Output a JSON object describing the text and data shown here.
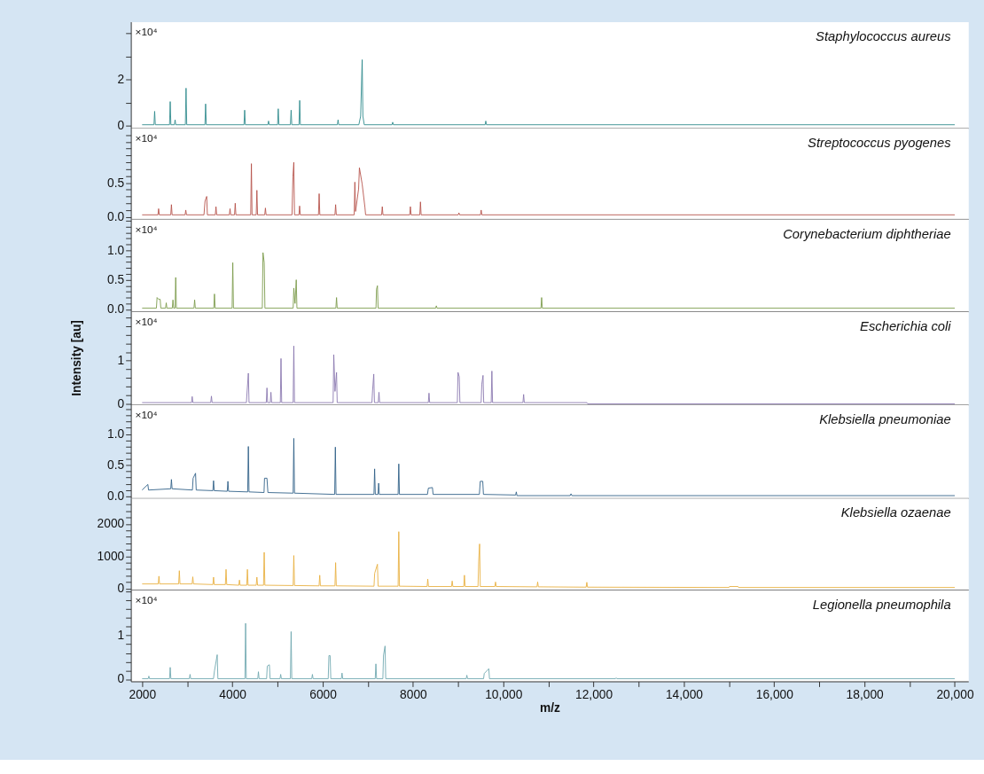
{
  "chart_data": [
    {
      "type": "line",
      "xlim": [
        1750,
        20300
      ],
      "ylim": [
        -0.1,
        4.5
      ],
      "yticks": [
        0,
        {
          "value": 1,
          "label": null
        },
        2,
        {
          "value": 3,
          "label": null
        },
        {
          "value": 4,
          "label": null
        }
      ],
      "tick_labels": "y",
      "annotations": [
        "×10⁴"
      ],
      "series": [
        {
          "name": "Staphylococcus aureus",
          "color": "#2f8a8c",
          "x": [
            2000,
            2262,
            2277,
            2292,
            2607,
            2622,
            2637,
            2715,
            2730,
            2745,
            2958,
            2973,
            2988,
            3391,
            3406,
            3421,
            4256,
            4271,
            4286,
            4785,
            4800,
            4815,
            5000,
            5015,
            5030,
            5285,
            5300,
            5315,
            5475,
            5490,
            5505,
            6325,
            6340,
            6355,
            6800,
            6840,
            6874,
            6890,
            6920,
            7535,
            7550,
            7565,
            9597,
            9612,
            9627,
            20000
          ],
          "values": [
            0.05,
            0.05,
            0.63,
            0.05,
            0.05,
            1.05,
            0.05,
            0.05,
            0.26,
            0.05,
            0.05,
            1.63,
            0.05,
            0.05,
            0.95,
            0.05,
            0.05,
            0.68,
            0.05,
            0.05,
            0.21,
            0.05,
            0.05,
            0.74,
            0.05,
            0.05,
            0.68,
            0.05,
            0.05,
            1.1,
            0.05,
            0.05,
            0.26,
            0.05,
            0.05,
            0.42,
            2.86,
            0.42,
            0.05,
            0.05,
            0.16,
            0.05,
            0.05,
            0.21,
            0.05,
            0.05
          ]
        }
      ]
    },
    {
      "type": "line",
      "xlim": [
        1750,
        20300
      ],
      "ylim": [
        -0.03,
        1.3
      ],
      "yticks": [
        {
          "value": 0,
          "label": "0.0"
        },
        {
          "value": 0.1,
          "label": null
        },
        {
          "value": 0.2,
          "label": null
        },
        {
          "value": 0.3,
          "label": null
        },
        {
          "value": 0.4,
          "label": null
        },
        0.5,
        {
          "value": 0.6,
          "label": null
        },
        {
          "value": 0.7,
          "label": null
        },
        {
          "value": 0.8,
          "label": null
        },
        {
          "value": 0.9,
          "label": null
        },
        {
          "value": 1.0,
          "label": null
        },
        {
          "value": 1.1,
          "label": null
        },
        {
          "value": 1.2,
          "label": null
        }
      ],
      "tick_labels": "y",
      "annotations": [
        "×10⁴"
      ],
      "series": [
        {
          "name": "Streptococcus pyogenes",
          "color": "#b5524a",
          "x": [
            2000,
            2350,
            2365,
            2380,
            2634,
            2649,
            2664,
            2952,
            2967,
            2982,
            3370,
            3393,
            3430,
            3445,
            3621,
            3636,
            3651,
            3932,
            3947,
            3962,
            4047,
            4062,
            4077,
            4405,
            4420,
            4435,
            4527,
            4542,
            4557,
            4716,
            4731,
            4746,
            5320,
            5340,
            5360,
            5375,
            5473,
            5488,
            5503,
            5906,
            5921,
            5936,
            6271,
            6286,
            6301,
            6697,
            6712,
            6727,
            6795,
            6813,
            6874,
            6935,
            6950,
            7305,
            7320,
            7335,
            7927,
            7942,
            7957,
            8150,
            8165,
            8180,
            9002,
            9017,
            9032,
            9495,
            9510,
            9525,
            20000
          ],
          "values": [
            0.03,
            0.03,
            0.12,
            0.03,
            0.03,
            0.18,
            0.03,
            0.03,
            0.1,
            0.03,
            0.03,
            0.23,
            0.3,
            0.03,
            0.03,
            0.15,
            0.03,
            0.03,
            0.12,
            0.03,
            0.03,
            0.2,
            0.03,
            0.03,
            0.78,
            0.03,
            0.03,
            0.39,
            0.03,
            0.03,
            0.13,
            0.03,
            0.03,
            0.59,
            0.8,
            0.03,
            0.03,
            0.16,
            0.03,
            0.03,
            0.34,
            0.03,
            0.03,
            0.18,
            0.03,
            0.03,
            0.51,
            0.08,
            0.41,
            0.72,
            0.48,
            0.14,
            0.03,
            0.03,
            0.15,
            0.03,
            0.03,
            0.15,
            0.03,
            0.03,
            0.22,
            0.03,
            0.03,
            0.06,
            0.03,
            0.03,
            0.1,
            0.03,
            0.03
          ]
        }
      ]
    },
    {
      "type": "line",
      "xlim": [
        1750,
        20300
      ],
      "ylim": [
        -0.035,
        1.53
      ],
      "yticks": [
        {
          "value": 0,
          "label": "0.0"
        },
        {
          "value": 0.1,
          "label": null
        },
        {
          "value": 0.2,
          "label": null
        },
        {
          "value": 0.3,
          "label": null
        },
        {
          "value": 0.4,
          "label": null
        },
        0.5,
        {
          "value": 0.6,
          "label": null
        },
        {
          "value": 0.7,
          "label": null
        },
        {
          "value": 0.8,
          "label": null
        },
        {
          "value": 0.9,
          "label": null
        },
        {
          "value": 1.0,
          "label": "1.0"
        },
        {
          "value": 1.1,
          "label": null
        },
        {
          "value": 1.2,
          "label": null
        },
        {
          "value": 1.3,
          "label": null
        },
        {
          "value": 1.4,
          "label": null
        },
        {
          "value": 1.5,
          "label": null
        }
      ],
      "tick_labels": "y",
      "annotations": [
        "×10⁴"
      ],
      "series": [
        {
          "name": "Corynebacterium diphtheriae",
          "color": "#7a9a4a",
          "x": [
            2000,
            2316,
            2331,
            2365,
            2399,
            2414,
            2519,
            2534,
            2549,
            2668,
            2683,
            2698,
            2729,
            2744,
            2759,
            3148,
            3163,
            3178,
            3587,
            3602,
            3617,
            3993,
            4008,
            4023,
            4662,
            4677,
            4705,
            4720,
            5345,
            5360,
            5387,
            5414,
            5429,
            6291,
            6306,
            6321,
            7180,
            7192,
            7212,
            7227,
            8502,
            8517,
            8532,
            10834,
            10849,
            10864,
            20000
          ],
          "values": [
            0.02,
            0.02,
            0.2,
            0.17,
            0.17,
            0.02,
            0.02,
            0.11,
            0.02,
            0.02,
            0.16,
            0.02,
            0.02,
            0.54,
            0.02,
            0.02,
            0.16,
            0.02,
            0.02,
            0.26,
            0.02,
            0.02,
            0.79,
            0.02,
            0.02,
            0.96,
            0.79,
            0.02,
            0.02,
            0.36,
            0.1,
            0.5,
            0.02,
            0.02,
            0.2,
            0.02,
            0.02,
            0.34,
            0.4,
            0.02,
            0.02,
            0.06,
            0.02,
            0.02,
            0.2,
            0.02,
            0.02
          ]
        }
      ]
    },
    {
      "type": "line",
      "xlim": [
        1750,
        20300
      ],
      "ylim": [
        -0.02,
        2.14
      ],
      "yticks": [
        0,
        {
          "value": 0.2,
          "label": null
        },
        {
          "value": 0.4,
          "label": null
        },
        {
          "value": 0.6,
          "label": null
        },
        {
          "value": 0.8,
          "label": null
        },
        1,
        {
          "value": 1.2,
          "label": null
        },
        {
          "value": 1.4,
          "label": null
        },
        {
          "value": 1.6,
          "label": null
        },
        {
          "value": 1.8,
          "label": null
        },
        {
          "value": 2.0,
          "label": null
        }
      ],
      "tick_labels": "y",
      "annotations": [
        "×10⁴"
      ],
      "ylabel": "Intensity [au]",
      "series": [
        {
          "name": "Escherichia coli",
          "color": "#8a78b0",
          "x": [
            2000,
            3094,
            3109,
            3124,
            3520,
            3535,
            3550,
            4310,
            4326,
            4353,
            4368,
            4750,
            4765,
            4780,
            4838,
            4853,
            4868,
            5061,
            5076,
            5091,
            5345,
            5360,
            5375,
            6230,
            6245,
            6272,
            6306,
            6321,
            7090,
            7104,
            7131,
            7146,
            7231,
            7246,
            7261,
            8339,
            8354,
            8369,
            8982,
            8997,
            9024,
            9039,
            9509,
            9524,
            9551,
            9566,
            9732,
            9747,
            9762,
            10435,
            10450,
            10465,
            11850,
            11870,
            20000
          ],
          "values": [
            0.03,
            0.03,
            0.17,
            0.03,
            0.03,
            0.18,
            0.03,
            0.03,
            0.3,
            0.71,
            0.03,
            0.03,
            0.37,
            0.03,
            0.03,
            0.27,
            0.03,
            0.03,
            1.05,
            0.03,
            0.03,
            1.34,
            0.03,
            0.03,
            1.14,
            0.29,
            0.73,
            0.03,
            0.03,
            0.3,
            0.69,
            0.03,
            0.03,
            0.27,
            0.03,
            0.03,
            0.25,
            0.03,
            0.03,
            0.73,
            0.63,
            0.03,
            0.03,
            0.46,
            0.66,
            0.03,
            0.03,
            0.76,
            0.03,
            0.03,
            0.22,
            0.03,
            0.03,
            0,
            0
          ]
        }
      ]
    },
    {
      "type": "line",
      "xlim": [
        1750,
        20300
      ],
      "ylim": [
        -0.03,
        1.47
      ],
      "yticks": [
        {
          "value": 0,
          "label": "0.0"
        },
        {
          "value": 0.1,
          "label": null
        },
        {
          "value": 0.2,
          "label": null
        },
        {
          "value": 0.3,
          "label": null
        },
        {
          "value": 0.4,
          "label": null
        },
        0.5,
        {
          "value": 0.6,
          "label": null
        },
        {
          "value": 0.7,
          "label": null
        },
        {
          "value": 0.8,
          "label": null
        },
        {
          "value": 0.9,
          "label": null
        },
        {
          "value": 1.0,
          "label": "1.0"
        },
        {
          "value": 1.1,
          "label": null
        },
        {
          "value": 1.2,
          "label": null
        },
        {
          "value": 1.3,
          "label": null
        },
        {
          "value": 1.4,
          "label": null
        }
      ],
      "tick_labels": "y",
      "annotations": [
        "×10⁴"
      ],
      "series": [
        {
          "name": "Klebsiella pneumoniae",
          "color": "#2e5f87",
          "x": [
            2000,
            2127,
            2142,
            2634,
            2649,
            2664,
            3114,
            3129,
            3183,
            3198,
            3567,
            3582,
            3597,
            3885,
            3900,
            3915,
            4338,
            4353,
            4368,
            4700,
            4711,
            4765,
            4786,
            5345,
            5360,
            5375,
            6265,
            6280,
            6295,
            7135,
            7150,
            7165,
            7224,
            7239,
            7254,
            7670,
            7685,
            7700,
            8320,
            8340,
            8430,
            8445,
            9470,
            9490,
            9545,
            9560,
            10273,
            10288,
            10303,
            11480,
            11500,
            11520,
            20000
          ],
          "values": [
            0.1,
            0.19,
            0.1,
            0.12,
            0.27,
            0.12,
            0.1,
            0.29,
            0.37,
            0.1,
            0.09,
            0.25,
            0.09,
            0.08,
            0.24,
            0.08,
            0.07,
            0.8,
            0.07,
            0.06,
            0.29,
            0.29,
            0.06,
            0.05,
            0.93,
            0.05,
            0.03,
            0.79,
            0.03,
            0.03,
            0.44,
            0.03,
            0.03,
            0.21,
            0.03,
            0.03,
            0.52,
            0.03,
            0.03,
            0.13,
            0.14,
            0.03,
            0.03,
            0.24,
            0.24,
            0.03,
            0.02,
            0.07,
            0.01,
            0.01,
            0.04,
            0.01,
            0.01
          ]
        }
      ]
    },
    {
      "type": "line",
      "xlim": [
        1750,
        20300
      ],
      "ylim": [
        -40,
        2800
      ],
      "yticks": [
        0,
        {
          "value": 200,
          "label": null
        },
        {
          "value": 400,
          "label": null
        },
        {
          "value": 600,
          "label": null
        },
        {
          "value": 800,
          "label": null
        },
        1000,
        {
          "value": 1200,
          "label": null
        },
        {
          "value": 1400,
          "label": null
        },
        {
          "value": 1600,
          "label": null
        },
        {
          "value": 1800,
          "label": null
        },
        2000,
        {
          "value": 2200,
          "label": null
        },
        {
          "value": 2400,
          "label": null
        },
        {
          "value": 2600,
          "label": null
        }
      ],
      "tick_labels": "y",
      "series": [
        {
          "name": "Klebsiella ozaenae",
          "color": "#e8b040",
          "x": [
            2000,
            2357,
            2372,
            2387,
            2809,
            2824,
            2839,
            3107,
            3122,
            3137,
            3567,
            3582,
            3597,
            3844,
            3859,
            3874,
            4141,
            4156,
            4171,
            4317,
            4332,
            4347,
            4527,
            4542,
            4557,
            4689,
            4704,
            4719,
            5345,
            5360,
            5375,
            5919,
            5934,
            5949,
            6271,
            6286,
            6301,
            7136,
            7151,
            7212,
            7227,
            7670,
            7685,
            7700,
            8312,
            8327,
            8342,
            8853,
            8868,
            8883,
            9124,
            9139,
            9154,
            9440,
            9455,
            9475,
            9490,
            9813,
            9828,
            9843,
            10746,
            10761,
            10776,
            11835,
            11850,
            11865,
            15000,
            15010,
            15200,
            15210,
            20000
          ],
          "values": [
            140,
            140,
            380,
            140,
            140,
            550,
            140,
            140,
            360,
            140,
            120,
            350,
            120,
            120,
            590,
            120,
            100,
            260,
            100,
            100,
            590,
            100,
            100,
            350,
            100,
            100,
            1120,
            100,
            90,
            1020,
            90,
            80,
            410,
            80,
            80,
            800,
            80,
            70,
            470,
            750,
            70,
            70,
            1760,
            70,
            60,
            290,
            60,
            60,
            230,
            60,
            60,
            410,
            60,
            60,
            840,
            1380,
            60,
            60,
            200,
            60,
            50,
            200,
            50,
            40,
            190,
            40,
            30,
            60,
            60,
            30,
            30
          ]
        }
      ]
    },
    {
      "type": "line",
      "xlim": [
        1750,
        20300
      ],
      "ylim": [
        -0.05,
        2.05
      ],
      "yticks": [
        0,
        {
          "value": 0.2,
          "label": null
        },
        {
          "value": 0.4,
          "label": null
        },
        {
          "value": 0.6,
          "label": null
        },
        {
          "value": 0.8,
          "label": null
        },
        1,
        {
          "value": 1.2,
          "label": null
        },
        {
          "value": 1.4,
          "label": null
        },
        {
          "value": 1.6,
          "label": null
        },
        {
          "value": 1.8,
          "label": null
        },
        {
          "value": 2.0,
          "label": null
        }
      ],
      "annotations": [
        "×10⁴"
      ],
      "xlabel": "m/z",
      "xticks": [
        2000,
        {
          "value": 3000,
          "label": null
        },
        4000,
        {
          "value": 5000,
          "label": null
        },
        6000,
        {
          "value": 7000,
          "label": null
        },
        8000,
        {
          "value": 9000,
          "label": null
        },
        {
          "value": 10000,
          "label": "10,000"
        },
        {
          "value": 11000,
          "label": null
        },
        {
          "value": 12000,
          "label": "12,000"
        },
        {
          "value": 13000,
          "label": null
        },
        {
          "value": 14000,
          "label": "14,000"
        },
        {
          "value": 15000,
          "label": null
        },
        {
          "value": 16000,
          "label": "16,000"
        },
        {
          "value": 17000,
          "label": null
        },
        {
          "value": 18000,
          "label": "18,000"
        },
        {
          "value": 19000,
          "label": null
        },
        {
          "value": 20000,
          "label": "20,000"
        }
      ],
      "series": [
        {
          "name": "Legionella pneumophila",
          "color": "#6fa8b0",
          "x": [
            2000,
            2134,
            2149,
            2164,
            2607,
            2622,
            2637,
            3046,
            3061,
            3076,
            3580,
            3602,
            3663,
            3678,
            4277,
            4292,
            4307,
            4561,
            4576,
            4591,
            4757,
            4772,
            4819,
            4834,
            5054,
            5069,
            5084,
            5285,
            5300,
            5315,
            5757,
            5772,
            5787,
            6122,
            6137,
            6164,
            6179,
            6413,
            6428,
            6443,
            7163,
            7178,
            7193,
            7332,
            7347,
            7381,
            7396,
            9178,
            9193,
            9208,
            9563,
            9578,
            9679,
            9694,
            12485,
            12500,
            12515,
            20000
          ],
          "values": [
            0.01,
            0.01,
            0.07,
            0.01,
            0.01,
            0.27,
            0.01,
            0.01,
            0.11,
            0.01,
            0.01,
            0.19,
            0.56,
            0.01,
            0.01,
            1.28,
            0.01,
            0.01,
            0.17,
            0.01,
            0.01,
            0.3,
            0.33,
            0.01,
            0.01,
            0.11,
            0.01,
            0.01,
            1.09,
            0.01,
            0.01,
            0.11,
            0.01,
            0.01,
            0.54,
            0.54,
            0.01,
            0.01,
            0.14,
            0.01,
            0.01,
            0.35,
            0.01,
            0.01,
            0.55,
            0.76,
            0.01,
            0.01,
            0.09,
            0.01,
            0.01,
            0.13,
            0.24,
            0.01,
            0.01,
            0.03,
            0.01,
            0.01
          ]
        }
      ]
    }
  ]
}
